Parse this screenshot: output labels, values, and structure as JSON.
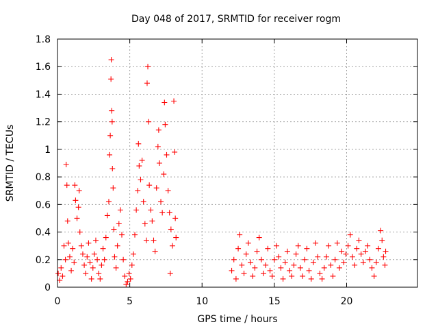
{
  "chart_data": {
    "type": "scatter",
    "title": "Day 048 of 2017, SRMTID for receiver rogm",
    "xlabel": "GPS time / hours",
    "ylabel": "SRMTID / TECUs",
    "xlim": [
      0,
      24.9
    ],
    "ylim": [
      0,
      1.8
    ],
    "x_ticks": [
      0,
      5,
      10,
      15,
      20
    ],
    "y_ticks": [
      0,
      0.2,
      0.4,
      0.6,
      0.8,
      1,
      1.2,
      1.4,
      1.6,
      1.8
    ],
    "x_tick_labels": [
      "0",
      "5",
      "10",
      "15",
      "20"
    ],
    "y_tick_labels": [
      "0",
      "0.2",
      "0.4",
      "0.6",
      "0.8",
      "1",
      "1.2",
      "1.4",
      "1.6",
      "1.8"
    ],
    "grid": true,
    "marker": "+",
    "series_color": "#ff0000",
    "series": [
      {
        "name": "SRMTID",
        "points": [
          [
            0.05,
            0.1
          ],
          [
            0.15,
            0.05
          ],
          [
            0.25,
            0.14
          ],
          [
            0.35,
            0.08
          ],
          [
            0.45,
            0.3
          ],
          [
            0.55,
            0.2
          ],
          [
            0.6,
            0.89
          ],
          [
            0.65,
            0.74
          ],
          [
            0.7,
            0.48
          ],
          [
            0.75,
            0.32
          ],
          [
            0.85,
            0.22
          ],
          [
            0.95,
            0.12
          ],
          [
            1.05,
            0.28
          ],
          [
            1.15,
            0.18
          ],
          [
            1.2,
            0.74
          ],
          [
            1.25,
            0.63
          ],
          [
            1.35,
            0.5
          ],
          [
            1.45,
            0.58
          ],
          [
            1.5,
            0.7
          ],
          [
            1.55,
            0.4
          ],
          [
            1.65,
            0.3
          ],
          [
            1.75,
            0.24
          ],
          [
            1.85,
            0.16
          ],
          [
            1.95,
            0.1
          ],
          [
            2.05,
            0.22
          ],
          [
            2.15,
            0.32
          ],
          [
            2.25,
            0.18
          ],
          [
            2.35,
            0.06
          ],
          [
            2.45,
            0.14
          ],
          [
            2.55,
            0.24
          ],
          [
            2.65,
            0.34
          ],
          [
            2.75,
            0.2
          ],
          [
            2.85,
            0.1
          ],
          [
            2.95,
            0.06
          ],
          [
            3.05,
            0.16
          ],
          [
            3.15,
            0.28
          ],
          [
            3.25,
            0.2
          ],
          [
            3.35,
            0.36
          ],
          [
            3.45,
            0.52
          ],
          [
            3.55,
            0.62
          ],
          [
            3.6,
            0.96
          ],
          [
            3.65,
            1.1
          ],
          [
            3.7,
            1.51
          ],
          [
            3.72,
            1.65
          ],
          [
            3.75,
            1.28
          ],
          [
            3.78,
            1.2
          ],
          [
            3.8,
            0.86
          ],
          [
            3.85,
            0.72
          ],
          [
            3.9,
            0.42
          ],
          [
            3.95,
            0.22
          ],
          [
            4.05,
            0.14
          ],
          [
            4.15,
            0.3
          ],
          [
            4.25,
            0.46
          ],
          [
            4.35,
            0.56
          ],
          [
            4.45,
            0.38
          ],
          [
            4.55,
            0.2
          ],
          [
            4.65,
            0.08
          ],
          [
            4.75,
            0.02
          ],
          [
            4.85,
            0.04
          ],
          [
            4.95,
            0.1
          ],
          [
            5.05,
            0.06
          ],
          [
            5.15,
            0.16
          ],
          [
            5.25,
            0.24
          ],
          [
            5.35,
            0.38
          ],
          [
            5.45,
            0.56
          ],
          [
            5.55,
            0.7
          ],
          [
            5.6,
            1.04
          ],
          [
            5.65,
            0.88
          ],
          [
            5.75,
            0.78
          ],
          [
            5.85,
            0.92
          ],
          [
            5.95,
            0.62
          ],
          [
            6.05,
            0.46
          ],
          [
            6.15,
            0.34
          ],
          [
            6.2,
            1.48
          ],
          [
            6.25,
            1.6
          ],
          [
            6.3,
            1.2
          ],
          [
            6.35,
            0.74
          ],
          [
            6.45,
            0.56
          ],
          [
            6.55,
            0.48
          ],
          [
            6.65,
            0.34
          ],
          [
            6.75,
            0.26
          ],
          [
            6.85,
            0.72
          ],
          [
            6.95,
            1.02
          ],
          [
            7.0,
            1.14
          ],
          [
            7.05,
            0.9
          ],
          [
            7.15,
            0.62
          ],
          [
            7.25,
            0.54
          ],
          [
            7.35,
            0.82
          ],
          [
            7.4,
            1.34
          ],
          [
            7.45,
            1.18
          ],
          [
            7.55,
            0.96
          ],
          [
            7.65,
            0.7
          ],
          [
            7.75,
            0.54
          ],
          [
            7.85,
            0.42
          ],
          [
            7.95,
            0.3
          ],
          [
            8.05,
            1.35
          ],
          [
            8.1,
            0.98
          ],
          [
            8.15,
            0.5
          ],
          [
            8.2,
            0.36
          ],
          [
            7.8,
            0.1
          ],
          [
            12.05,
            0.12
          ],
          [
            12.2,
            0.2
          ],
          [
            12.35,
            0.06
          ],
          [
            12.5,
            0.28
          ],
          [
            12.6,
            0.38
          ],
          [
            12.75,
            0.16
          ],
          [
            12.9,
            0.1
          ],
          [
            13.05,
            0.24
          ],
          [
            13.2,
            0.32
          ],
          [
            13.35,
            0.18
          ],
          [
            13.5,
            0.08
          ],
          [
            13.65,
            0.14
          ],
          [
            13.8,
            0.26
          ],
          [
            13.95,
            0.36
          ],
          [
            14.1,
            0.2
          ],
          [
            14.25,
            0.1
          ],
          [
            14.4,
            0.16
          ],
          [
            14.55,
            0.28
          ],
          [
            14.7,
            0.12
          ],
          [
            14.85,
            0.08
          ],
          [
            15.0,
            0.2
          ],
          [
            15.15,
            0.3
          ],
          [
            15.3,
            0.22
          ],
          [
            15.45,
            0.14
          ],
          [
            15.6,
            0.06
          ],
          [
            15.75,
            0.18
          ],
          [
            15.9,
            0.26
          ],
          [
            16.05,
            0.12
          ],
          [
            16.2,
            0.08
          ],
          [
            16.35,
            0.16
          ],
          [
            16.5,
            0.24
          ],
          [
            16.65,
            0.3
          ],
          [
            16.8,
            0.14
          ],
          [
            16.95,
            0.08
          ],
          [
            17.1,
            0.2
          ],
          [
            17.25,
            0.28
          ],
          [
            17.4,
            0.12
          ],
          [
            17.55,
            0.06
          ],
          [
            17.7,
            0.18
          ],
          [
            17.85,
            0.32
          ],
          [
            18.0,
            0.22
          ],
          [
            18.15,
            0.1
          ],
          [
            18.3,
            0.06
          ],
          [
            18.45,
            0.14
          ],
          [
            18.6,
            0.22
          ],
          [
            18.75,
            0.3
          ],
          [
            18.9,
            0.16
          ],
          [
            19.05,
            0.08
          ],
          [
            19.2,
            0.2
          ],
          [
            19.35,
            0.32
          ],
          [
            19.5,
            0.14
          ],
          [
            19.65,
            0.26
          ],
          [
            19.8,
            0.18
          ],
          [
            19.95,
            0.24
          ],
          [
            20.1,
            0.3
          ],
          [
            20.25,
            0.38
          ],
          [
            20.4,
            0.22
          ],
          [
            20.55,
            0.16
          ],
          [
            20.7,
            0.28
          ],
          [
            20.85,
            0.34
          ],
          [
            21.0,
            0.24
          ],
          [
            21.15,
            0.18
          ],
          [
            21.3,
            0.26
          ],
          [
            21.45,
            0.3
          ],
          [
            21.6,
            0.2
          ],
          [
            21.75,
            0.14
          ],
          [
            21.9,
            0.08
          ],
          [
            22.05,
            0.18
          ],
          [
            22.2,
            0.28
          ],
          [
            22.35,
            0.41
          ],
          [
            22.45,
            0.34
          ],
          [
            22.55,
            0.22
          ],
          [
            22.65,
            0.16
          ],
          [
            22.7,
            0.26
          ]
        ]
      }
    ]
  }
}
